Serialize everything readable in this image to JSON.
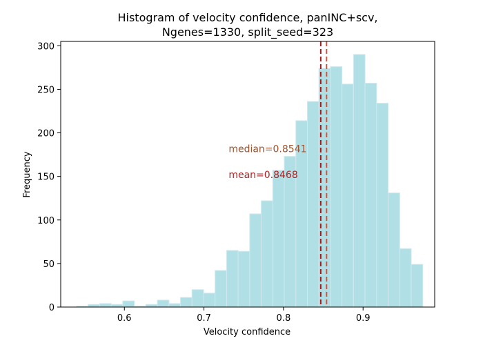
{
  "chart_data": {
    "type": "histogram",
    "title_lines": [
      "Histogram of velocity confidence, panINC+scv,",
      "Ngenes=1330, split_seed=323"
    ],
    "xlabel": "Velocity confidence",
    "ylabel": "Frequency",
    "xlim": [
      0.52,
      0.99
    ],
    "ylim": [
      0,
      305
    ],
    "x_ticks": [
      0.6,
      0.7,
      0.8,
      0.9
    ],
    "x_tick_labels": [
      "0.6",
      "0.7",
      "0.8",
      "0.9"
    ],
    "y_ticks": [
      0,
      50,
      100,
      150,
      200,
      250,
      300
    ],
    "y_tick_labels": [
      "0",
      "50",
      "100",
      "150",
      "200",
      "250",
      "300"
    ],
    "bin_edges": [
      0.54,
      0.5545,
      0.569,
      0.5835,
      0.598,
      0.6125,
      0.627,
      0.6415,
      0.656,
      0.6705,
      0.685,
      0.6995,
      0.714,
      0.7285,
      0.743,
      0.7575,
      0.772,
      0.7865,
      0.801,
      0.8155,
      0.83,
      0.8445,
      0.859,
      0.8735,
      0.888,
      0.9025,
      0.917,
      0.9315,
      0.946,
      0.9605,
      0.975
    ],
    "counts": [
      1,
      3,
      4,
      3,
      7,
      1,
      3,
      8,
      4,
      11,
      20,
      16,
      42,
      65,
      64,
      107,
      122,
      157,
      173,
      214,
      236,
      274,
      276,
      256,
      290,
      257,
      234,
      131,
      67,
      49
    ],
    "bar_color": "#b0dfe5",
    "bar_edge_color": "#cfe9ee",
    "median": 0.8541,
    "mean": 0.8468,
    "median_color": "#d1523a",
    "mean_color": "#a81a1a",
    "annotations": [
      {
        "text": "median=0.8541",
        "color": "#a0522d",
        "x": 0.731,
        "y": 178
      },
      {
        "text": "mean=0.8468",
        "color": "#b22222",
        "x": 0.731,
        "y": 148
      }
    ]
  }
}
